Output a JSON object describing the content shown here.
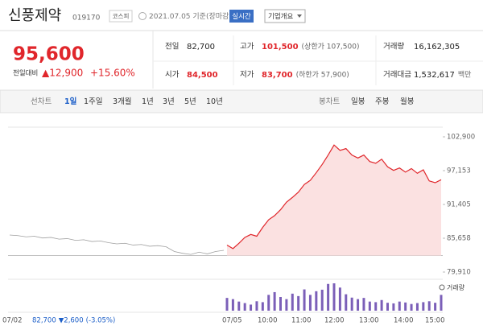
{
  "header": {
    "name": "신풍제약",
    "code": "019170",
    "market": "코스피",
    "date": "2021.07.05 기준(장마감)",
    "realtime": "실시간",
    "company": "기업개요"
  },
  "quote": {
    "price": "95,600",
    "change_label": "전일대비",
    "change": "▲12,900",
    "rate": "+15.60%"
  },
  "stats": [
    [
      {
        "label": "전일",
        "value": "82,700"
      },
      {
        "label": "고가",
        "value": "101,500",
        "note": "(상한가 107,500)"
      },
      {
        "label": "거래량",
        "value": "16,162,305"
      }
    ],
    [
      {
        "label": "시가",
        "value": "84,500"
      },
      {
        "label": "저가",
        "value": "83,700",
        "note": "(하한가 57,900)"
      },
      {
        "label": "거래대금",
        "value": "1,532,617",
        "note": "백만"
      }
    ]
  ],
  "tabs": {
    "line_label": "선차트",
    "line": [
      "1일",
      "1주일",
      "3개월",
      "1년",
      "3년",
      "5년",
      "10년"
    ],
    "candle_label": "봉차트",
    "candle": [
      "일봉",
      "주봉",
      "월봉"
    ]
  },
  "chart_data": {
    "type": "line",
    "ylim": [
      79910,
      102900
    ],
    "yticks": [
      {
        "value": 102900,
        "label": "102,900"
      },
      {
        "value": 97153,
        "label": "97,153"
      },
      {
        "value": 91405,
        "label": "91,405"
      },
      {
        "value": 85658,
        "label": "85,658"
      },
      {
        "value": 79910,
        "label": "79,910"
      }
    ],
    "reference": 82700,
    "series": [
      {
        "color": "#a0a0a0",
        "values": [
          86200,
          86100,
          85900,
          86000,
          85700,
          85800,
          85500,
          85600,
          85300,
          85400,
          85100,
          85200,
          84900,
          84700,
          84800,
          84500,
          84600,
          84300,
          84400,
          84200,
          83400,
          83100,
          82900,
          83300,
          83000,
          83400,
          83600
        ]
      },
      {
        "color": "#e0262b",
        "values": [
          84500,
          83900,
          84800,
          85800,
          86300,
          86000,
          87500,
          88800,
          89500,
          90500,
          91800,
          92600,
          93500,
          94800,
          95500,
          96800,
          98200,
          99800,
          101500,
          100600,
          100900,
          99800,
          99300,
          99800,
          98700,
          98400,
          99100,
          97800,
          97200,
          97600,
          96900,
          97500,
          96700,
          97300,
          95400,
          95100,
          95600
        ]
      }
    ],
    "volume": {
      "color": "#7b5fb8",
      "label": "거래량",
      "values": [
        420000,
        380000,
        300000,
        250000,
        200000,
        310000,
        280000,
        520000,
        610000,
        450000,
        380000,
        560000,
        480000,
        700000,
        520000,
        640000,
        690000,
        880000,
        900000,
        760000,
        540000,
        430000,
        380000,
        420000,
        300000,
        280000,
        350000,
        260000,
        240000,
        300000,
        270000,
        220000,
        250000,
        280000,
        310000,
        260000,
        520000
      ]
    },
    "x_labels": [
      "07/02",
      "07/05",
      "10:00",
      "11:00",
      "12:00",
      "13:00",
      "14:00",
      "15:00"
    ],
    "last_close": "82,700",
    "last_change": "▼2,600",
    "last_rate": "(-3.05%)"
  }
}
